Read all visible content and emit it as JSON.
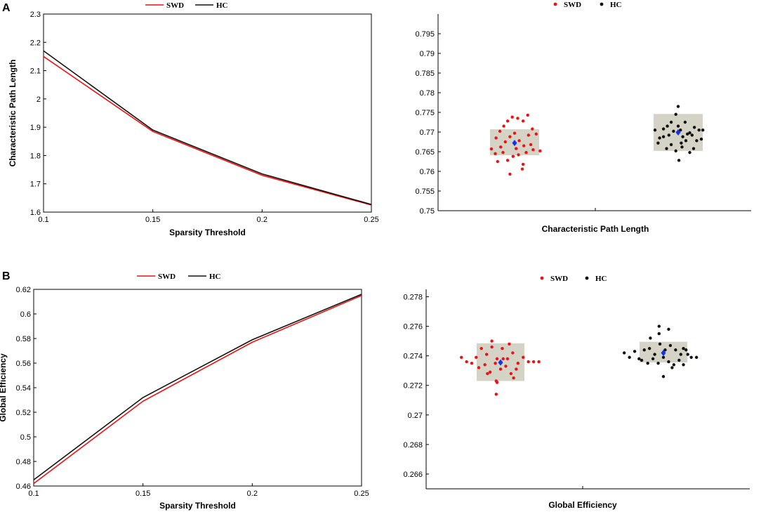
{
  "panels": [
    {
      "label": "A"
    },
    {
      "label": "B"
    }
  ],
  "colors": {
    "swd": "#ee1111",
    "hc": "#111111",
    "box": "#d4d3c6",
    "mean": "#1133ee"
  },
  "chart_data": [
    {
      "type": "line",
      "title": "",
      "xlabel": "Sparsity Threshold",
      "ylabel": "Characteristic Path Length",
      "x": [
        0.1,
        0.15,
        0.2,
        0.25
      ],
      "xticks": [
        "0.1",
        "0.15",
        "0.2",
        "0.25"
      ],
      "xlim": [
        0.1,
        0.25
      ],
      "ylim": [
        1.6,
        2.3
      ],
      "yticks": [
        "1.6",
        "1.7",
        "1.8",
        "1.9",
        "2",
        "2.1",
        "2.2",
        "2.3"
      ],
      "legend": [
        "SWD",
        "HC"
      ],
      "legend_position": "top",
      "series": [
        {
          "name": "SWD",
          "values": [
            2.15,
            1.885,
            1.73,
            1.625
          ]
        },
        {
          "name": "HC",
          "values": [
            2.17,
            1.89,
            1.735,
            1.627
          ]
        }
      ]
    },
    {
      "type": "scatter",
      "title": "",
      "xlabel": "Characteristic Path Length",
      "ylabel": "",
      "ylim": [
        0.75,
        0.8
      ],
      "yticks": [
        "0.75",
        "0.755",
        "0.76",
        "0.765",
        "0.77",
        "0.775",
        "0.78",
        "0.785",
        "0.79",
        "0.795"
      ],
      "legend": [
        "SWD",
        "HC"
      ],
      "legend_position": "top",
      "groups": [
        {
          "name": "SWD",
          "mean": 0.7672,
          "box": [
            0.7641,
            0.7707
          ],
          "points": [
            [
              -0.6,
              0.7657
            ],
            [
              -0.48,
              0.7685
            ],
            [
              -0.38,
              0.7702
            ],
            [
              -0.28,
              0.7715
            ],
            [
              -0.18,
              0.7728
            ],
            [
              -0.06,
              0.7738
            ],
            [
              0.08,
              0.7735
            ],
            [
              0.22,
              0.7728
            ],
            [
              0.34,
              0.7743
            ],
            [
              0.46,
              0.7708
            ],
            [
              0.56,
              0.7695
            ],
            [
              0.66,
              0.7652
            ],
            [
              -0.5,
              0.7645
            ],
            [
              -0.36,
              0.7662
            ],
            [
              -0.24,
              0.7675
            ],
            [
              -0.12,
              0.7688
            ],
            [
              0.0,
              0.7697
            ],
            [
              0.12,
              0.7678
            ],
            [
              0.24,
              0.7665
            ],
            [
              0.36,
              0.7692
            ],
            [
              0.48,
              0.7655
            ],
            [
              -0.44,
              0.7625
            ],
            [
              -0.3,
              0.7648
            ],
            [
              -0.18,
              0.7628
            ],
            [
              -0.04,
              0.7638
            ],
            [
              0.1,
              0.7642
            ],
            [
              0.22,
              0.7618
            ],
            [
              0.3,
              0.7648
            ],
            [
              0.42,
              0.7668
            ],
            [
              -0.12,
              0.7593
            ],
            [
              0.2,
              0.7606
            ],
            [
              0.04,
              0.7658
            ]
          ]
        },
        {
          "name": "HC",
          "mean": 0.7699,
          "box": [
            0.7652,
            0.7746
          ],
          "points": [
            [
              -0.6,
              0.7705
            ],
            [
              -0.48,
              0.7685
            ],
            [
              -0.38,
              0.7708
            ],
            [
              -0.28,
              0.7715
            ],
            [
              -0.18,
              0.7725
            ],
            [
              -0.06,
              0.7745
            ],
            [
              0.06,
              0.7705
            ],
            [
              0.18,
              0.7725
            ],
            [
              0.3,
              0.7698
            ],
            [
              0.42,
              0.7712
            ],
            [
              0.54,
              0.7705
            ],
            [
              0.64,
              0.7705
            ],
            [
              -0.52,
              0.7672
            ],
            [
              -0.38,
              0.7688
            ],
            [
              -0.24,
              0.7692
            ],
            [
              -0.12,
              0.7702
            ],
            [
              0.0,
              0.7715
            ],
            [
              0.12,
              0.7688
            ],
            [
              0.24,
              0.7695
            ],
            [
              0.36,
              0.7692
            ],
            [
              0.48,
              0.7678
            ],
            [
              0.6,
              0.7682
            ],
            [
              -0.3,
              0.7658
            ],
            [
              -0.18,
              0.7668
            ],
            [
              -0.06,
              0.7652
            ],
            [
              0.08,
              0.7672
            ],
            [
              0.2,
              0.7678
            ],
            [
              0.3,
              0.7648
            ],
            [
              0.4,
              0.7658
            ],
            [
              0.02,
              0.7628
            ],
            [
              0.0,
              0.7765
            ],
            [
              0.1,
              0.7662
            ]
          ]
        }
      ]
    },
    {
      "type": "line",
      "title": "",
      "xlabel": "Sparsity Threshold",
      "ylabel": "Global  Efficiency",
      "x": [
        0.1,
        0.15,
        0.2,
        0.25
      ],
      "xticks": [
        "0.1",
        "0.15",
        "0.2",
        "0.25"
      ],
      "xlim": [
        0.1,
        0.25
      ],
      "ylim": [
        0.46,
        0.62
      ],
      "yticks": [
        "0.46",
        "0.48",
        "0.5",
        "0.52",
        "0.54",
        "0.56",
        "0.58",
        "0.6",
        "0.62"
      ],
      "legend": [
        "SWD",
        "HC"
      ],
      "legend_position": "top",
      "series": [
        {
          "name": "SWD",
          "values": [
            0.462,
            0.529,
            0.577,
            0.615
          ]
        },
        {
          "name": "HC",
          "values": [
            0.465,
            0.532,
            0.579,
            0.616
          ]
        }
      ]
    },
    {
      "type": "scatter",
      "title": "",
      "xlabel": "Global  Efficiency",
      "ylabel": "",
      "ylim": [
        0.265,
        0.2785
      ],
      "yticks": [
        "0.266",
        "0.268",
        "0.27",
        "0.272",
        "0.274",
        "0.276",
        "0.278"
      ],
      "legend": [
        "SWD",
        "HC"
      ],
      "legend_position": "top",
      "groups": [
        {
          "name": "SWD",
          "mean": 0.27355,
          "box": [
            0.2723,
            0.27485
          ],
          "points": [
            [
              -0.9,
              0.2739
            ],
            [
              -0.78,
              0.2736
            ],
            [
              -0.66,
              0.2735
            ],
            [
              -0.56,
              0.2739
            ],
            [
              -0.44,
              0.2745
            ],
            [
              -0.32,
              0.2741
            ],
            [
              -0.2,
              0.2746
            ],
            [
              -0.08,
              0.2738
            ],
            [
              0.04,
              0.2745
            ],
            [
              0.16,
              0.2738
            ],
            [
              0.28,
              0.2742
            ],
            [
              0.4,
              0.2735
            ],
            [
              0.52,
              0.2739
            ],
            [
              0.64,
              0.2736
            ],
            [
              0.76,
              0.2736
            ],
            [
              0.88,
              0.2736
            ],
            [
              -0.5,
              0.2732
            ],
            [
              -0.36,
              0.2734
            ],
            [
              -0.24,
              0.2729
            ],
            [
              -0.12,
              0.2735
            ],
            [
              0.0,
              0.2731
            ],
            [
              0.12,
              0.2733
            ],
            [
              0.24,
              0.2728
            ],
            [
              0.36,
              0.2731
            ],
            [
              -0.3,
              0.2728
            ],
            [
              -0.08,
              0.2722
            ],
            [
              -0.1,
              0.2723
            ],
            [
              0.3,
              0.2725
            ],
            [
              -0.1,
              0.2714
            ],
            [
              0.06,
              0.2738
            ],
            [
              -0.2,
              0.275
            ],
            [
              0.2,
              0.2748
            ]
          ]
        },
        {
          "name": "HC",
          "mean": 0.2742,
          "box": [
            0.27355,
            0.27495
          ],
          "points": [
            [
              -0.9,
              0.2742
            ],
            [
              -0.78,
              0.2739
            ],
            [
              -0.66,
              0.2743
            ],
            [
              -0.56,
              0.2738
            ],
            [
              -0.44,
              0.2744
            ],
            [
              -0.32,
              0.2745
            ],
            [
              -0.2,
              0.2741
            ],
            [
              -0.08,
              0.2748
            ],
            [
              0.04,
              0.2744
            ],
            [
              0.16,
              0.2747
            ],
            [
              0.28,
              0.2744
            ],
            [
              0.4,
              0.2741
            ],
            [
              0.52,
              0.2744
            ],
            [
              0.64,
              0.2739
            ],
            [
              0.76,
              0.2739
            ],
            [
              -0.5,
              0.2737
            ],
            [
              -0.36,
              0.2735
            ],
            [
              -0.24,
              0.2738
            ],
            [
              -0.12,
              0.2735
            ],
            [
              0.0,
              0.2739
            ],
            [
              0.12,
              0.2736
            ],
            [
              0.24,
              0.2734
            ],
            [
              0.36,
              0.2737
            ],
            [
              0.46,
              0.2734
            ],
            [
              -0.1,
              0.2755
            ],
            [
              0.12,
              0.2758
            ],
            [
              -0.1,
              0.276
            ],
            [
              0.0,
              0.2726
            ],
            [
              0.2,
              0.2732
            ],
            [
              0.46,
              0.2745
            ],
            [
              -0.3,
              0.2752
            ],
            [
              0.56,
              0.2741
            ]
          ]
        }
      ]
    }
  ]
}
